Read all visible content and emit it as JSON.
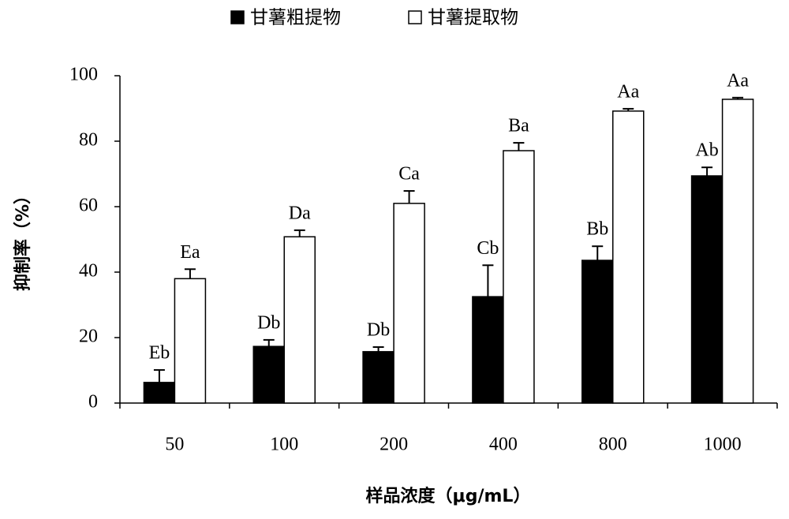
{
  "chart_data": {
    "type": "bar",
    "legend": "top",
    "y_label": "抑制率（%）",
    "x_label": "样品浓度（μg/mL）",
    "categories": [
      "50",
      "100",
      "200",
      "400",
      "800",
      "1000"
    ],
    "series": [
      {
        "name": "甘薯粗提物",
        "color": "#000000",
        "values": [
          6.3,
          17.3,
          15.7,
          32.5,
          43.6,
          69.4
        ],
        "errors": [
          3.8,
          2.0,
          1.4,
          9.6,
          4.3,
          2.6
        ],
        "labels": [
          "Eb",
          "Db",
          "Db",
          "Cb",
          "Bb",
          "Ab"
        ]
      },
      {
        "name": "甘薯提取物",
        "color": "#ffffff",
        "values": [
          38.0,
          50.8,
          61.0,
          77.1,
          89.2,
          92.8
        ],
        "errors": [
          2.9,
          2.0,
          3.8,
          2.4,
          0.7,
          0.5
        ],
        "labels": [
          "Ea",
          "Da",
          "Ca",
          "Ba",
          "Aa",
          "Aa"
        ]
      }
    ],
    "ylim": [
      0,
      100
    ],
    "yticks": [
      0,
      20,
      40,
      60,
      80,
      100
    ],
    "grid": false
  }
}
